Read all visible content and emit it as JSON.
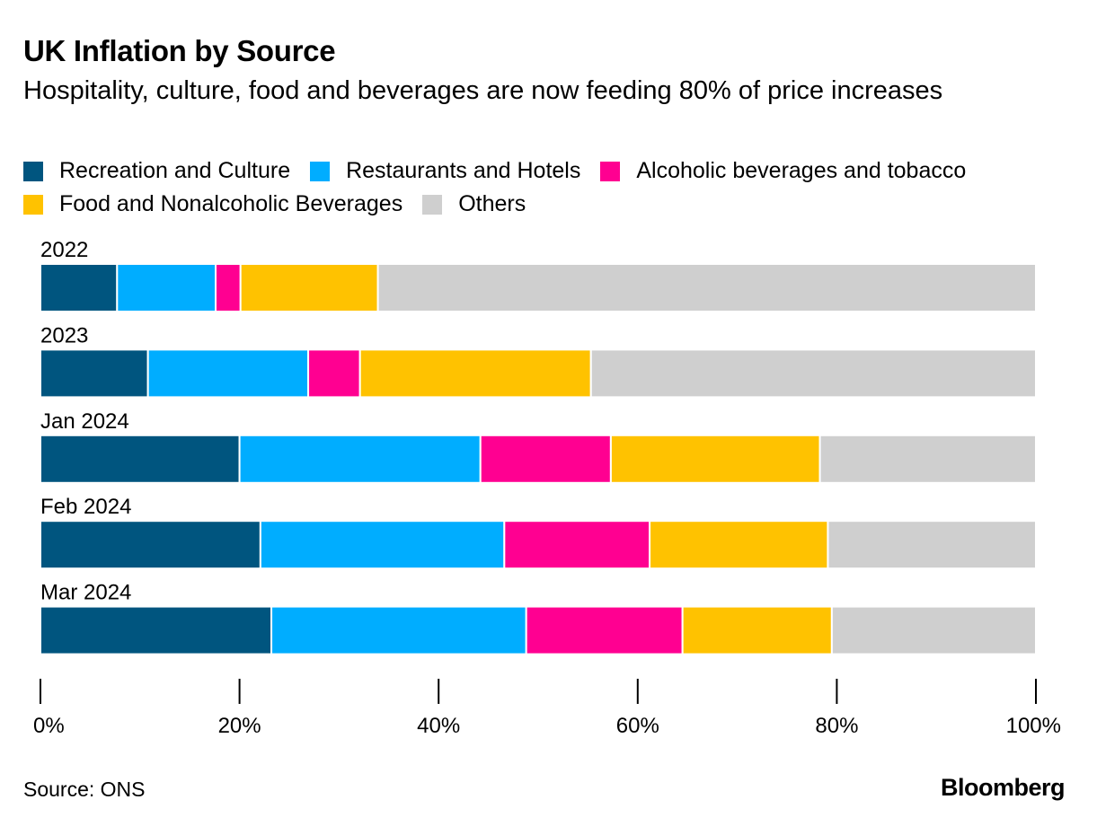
{
  "title": "UK Inflation by Source",
  "subtitle": "Hospitality, culture, food and beverages are now feeding 80% of price increases",
  "source": "Source: ONS",
  "brand": "Bloomberg",
  "legend": [
    {
      "label": "Recreation and Culture",
      "color": "#00557f"
    },
    {
      "label": "Restaurants and Hotels",
      "color": "#00adff"
    },
    {
      "label": "Alcoholic beverages and tobacco",
      "color": "#ff0091"
    },
    {
      "label": "Food and Nonalcoholic Beverages",
      "color": "#ffc200"
    },
    {
      "label": "Others",
      "color": "#cfcfcf"
    }
  ],
  "chart_data": {
    "type": "bar",
    "orientation": "horizontal",
    "stacked": true,
    "categories": [
      "2022",
      "2023",
      "Jan 2024",
      "Feb 2024",
      "Mar 2024"
    ],
    "series": [
      {
        "name": "Recreation and Culture",
        "color": "#00557f",
        "values": [
          7.7,
          10.8,
          20.0,
          22.1,
          23.2
        ]
      },
      {
        "name": "Restaurants and Hotels",
        "color": "#00adff",
        "values": [
          9.9,
          16.1,
          24.2,
          24.5,
          25.6
        ]
      },
      {
        "name": "Alcoholic beverages and tobacco",
        "color": "#ff0091",
        "values": [
          2.5,
          5.2,
          13.1,
          14.6,
          15.7
        ]
      },
      {
        "name": "Food and Nonalcoholic Beverages",
        "color": "#ffc200",
        "values": [
          13.8,
          23.2,
          21.0,
          17.9,
          15.0
        ]
      },
      {
        "name": "Others",
        "color": "#cfcfcf",
        "values": [
          66.1,
          44.7,
          21.7,
          20.9,
          20.5
        ]
      }
    ],
    "xlim": [
      0,
      100
    ],
    "xticks": [
      0,
      20,
      40,
      60,
      80,
      100
    ],
    "xtick_labels": [
      "0%",
      "20%",
      "40%",
      "60%",
      "80%",
      "100%"
    ],
    "xlabel": "",
    "ylabel": "",
    "legend_position": "top"
  }
}
